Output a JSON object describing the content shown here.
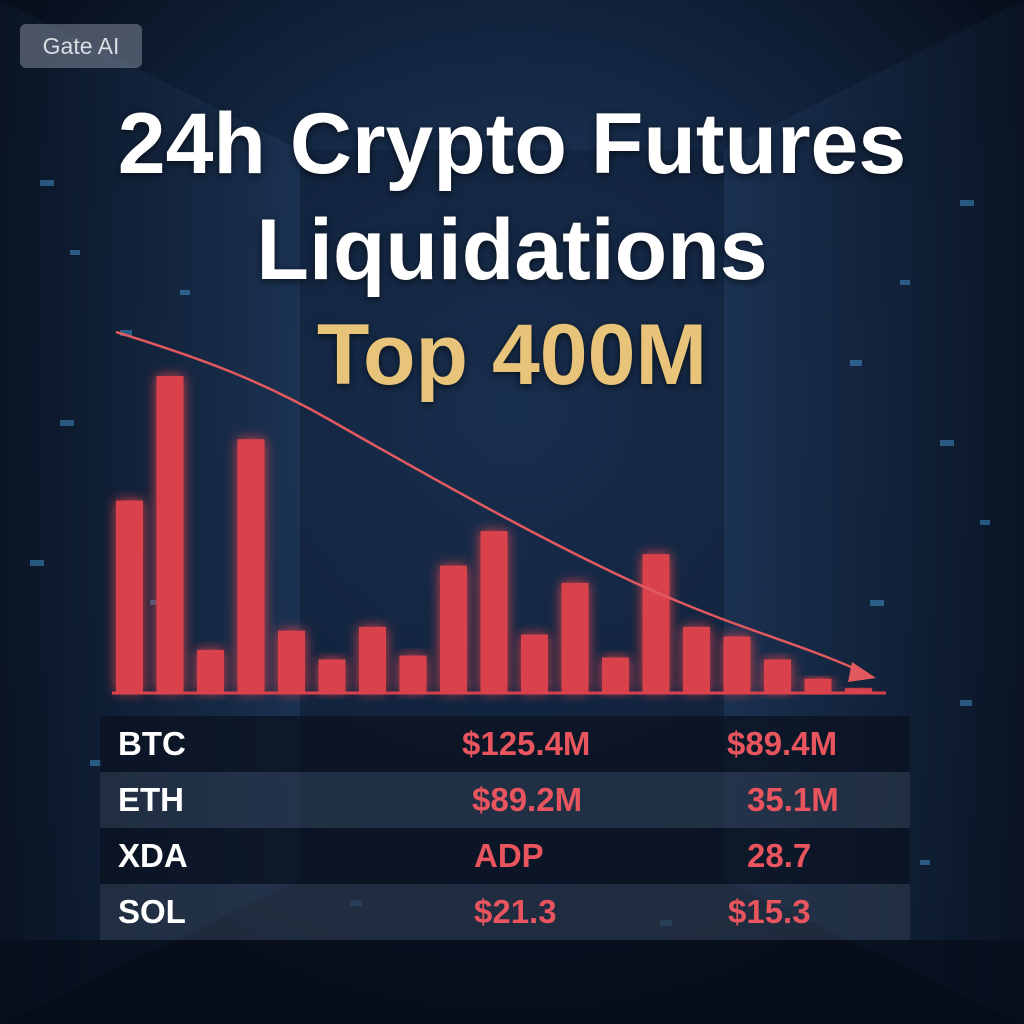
{
  "badge": "Gate AI",
  "title_line1": "24h Crypto Futures",
  "title_line2": "Liquidations",
  "subtitle": "Top 400M",
  "colors": {
    "bar": "#d9424c",
    "trend": "#e25a60",
    "subtitle": "#e8c47a",
    "text_red": "#e8555e",
    "background": "#0b1526"
  },
  "chart_data": {
    "type": "bar",
    "values": [
      100,
      165,
      22,
      132,
      32,
      17,
      34,
      19,
      66,
      84,
      30,
      57,
      18,
      72,
      34,
      29,
      17,
      7,
      2
    ],
    "trend_direction": "down",
    "grid": false,
    "xlabel": "",
    "ylabel": ""
  },
  "table": {
    "rows": [
      {
        "coin": "BTC",
        "col2": "$125.4M",
        "col3": "$89.4M"
      },
      {
        "coin": "ETH",
        "col2": "$89.2M",
        "col3": "35.1M"
      },
      {
        "coin": "XDA",
        "col2": "ADP",
        "col3": "28.7"
      },
      {
        "coin": "SOL",
        "col2": "$21.3",
        "col3": "$15.3"
      }
    ]
  }
}
